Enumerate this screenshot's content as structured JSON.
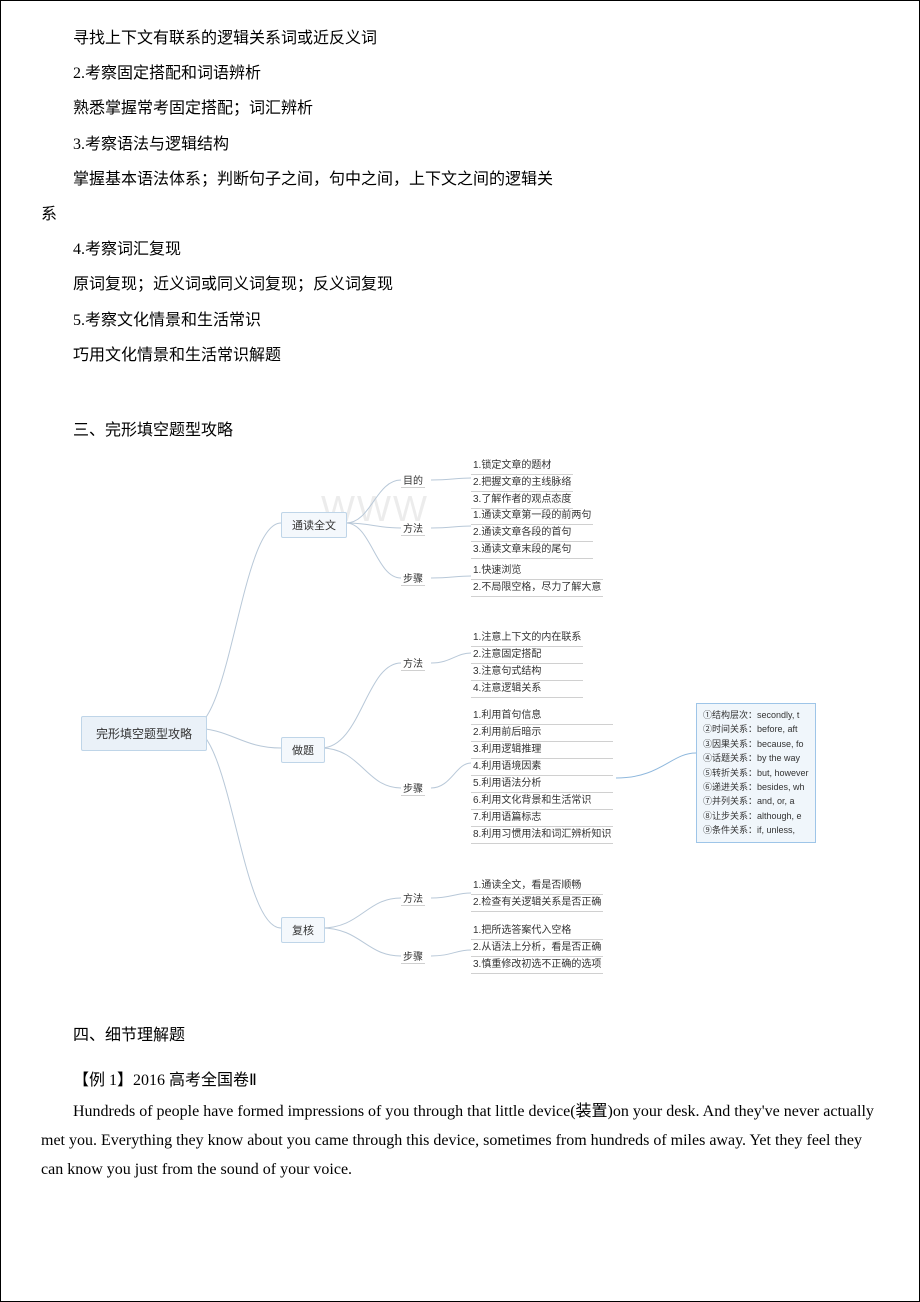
{
  "lines": {
    "l1": "寻找上下文有联系的逻辑关系词或近反义词",
    "l2": "2.考察固定搭配和词语辨析",
    "l3": "熟悉掌握常考固定搭配；词汇辨析",
    "l4": "3.考察语法与逻辑结构",
    "l5a": "掌握基本语法体系；判断句子之间，句中之间，上下文之间的逻辑关",
    "l5b": "系",
    "l6": "4.考察词汇复现",
    "l7": "原词复现；近义词或同义词复现；反义词复现",
    "l8": "5.考察文化情景和生活常识",
    "l9": "巧用文化情景和生活常识解题",
    "sec3": "三、完形填空题型攻略",
    "sec4": "四、细节理解题",
    "ex1": "【例 1】2016 高考全国卷Ⅱ",
    "en": "Hundreds of people have formed impressions of you through that little device(装置)on your desk. And they've never actually met you. Everything they know about you came through this device, sometimes from hundreds of miles away. Yet they feel they can know you just from the sound of your voice."
  },
  "mindmap": {
    "watermark": "WWW",
    "root": "完形填空题型攻略",
    "branches": {
      "b1": "通读全文",
      "b2": "做题",
      "b3": "复核"
    },
    "mids": {
      "m1": "目的",
      "m2": "方法",
      "m3": "步骤",
      "m4": "方法",
      "m5": "步骤",
      "m6": "方法",
      "m7": "步骤"
    },
    "leaves": {
      "g1": [
        "1.锁定文章的题材",
        "2.把握文章的主线脉络",
        "3.了解作者的观点态度"
      ],
      "g2": [
        "1.通读文章第一段的前两句",
        "2.通读文章各段的首句",
        "3.通读文章末段的尾句"
      ],
      "g3": [
        "1.快速浏览",
        "2.不局限空格，尽力了解大意"
      ],
      "g4": [
        "1.注意上下文的内在联系",
        "2.注意固定搭配",
        "3.注意句式结构",
        "4.注意逻辑关系"
      ],
      "g5": [
        "1.利用首句信息",
        "2.利用前后暗示",
        "3.利用逻辑推理",
        "4.利用语境因素",
        "5.利用语法分析",
        "6.利用文化背景和生活常识",
        "7.利用语篇标志",
        "8.利用习惯用法和词汇辨析知识"
      ],
      "g6": [
        "1.通读全文，看是否顺畅",
        "2.检查有关逻辑关系是否正确"
      ],
      "g7": [
        "1.把所选答案代入空格",
        "2.从语法上分析，看是否正确",
        "3.慎重修改初选不正确的选项"
      ]
    },
    "note": [
      "①结构层次：secondly, t",
      "②时间关系：before, aft",
      "③因果关系：because, fo",
      "④话题关系：by the way",
      "⑤转折关系：but, however",
      "⑥递进关系：besides, wh",
      "⑦并列关系：and, or, a",
      "⑧让步关系：although, e",
      "⑨条件关系：if, unless,"
    ]
  },
  "style": {
    "node_border": "#bfd5e8",
    "node_bg": "#f4f8fc",
    "note_border": "#9ec5e8",
    "note_bg": "#f0f6fb",
    "line_color": "#b8c8d8"
  }
}
